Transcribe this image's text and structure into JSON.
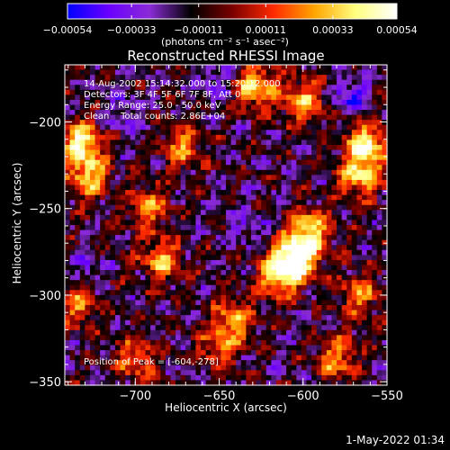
{
  "chart_data": {
    "type": "heatmap",
    "title": "Reconstructed RHESSI Image",
    "xlabel": "Heliocentric X (arcsec)",
    "ylabel": "Heliocentric Y (arcsec)",
    "xlim": [
      -742,
      -550
    ],
    "ylim": [
      -352,
      -167
    ],
    "xticks": [
      -700,
      -650,
      -600,
      -550
    ],
    "xtick_labels": [
      "−700",
      "−650",
      "−600",
      "−550"
    ],
    "yticks": [
      -200,
      -250,
      -300,
      -350
    ],
    "ytick_labels": [
      "−200",
      "−250",
      "−300",
      "−350"
    ],
    "colorbar": {
      "min": -0.00054,
      "max": 0.00054,
      "ticks": [
        -0.00054,
        -0.00033,
        -0.00011,
        0.00011,
        0.00033,
        0.00054
      ],
      "tick_labels": [
        "−0.00054",
        "−0.00033",
        "−0.00011",
        "0.00011",
        "0.00033",
        "0.00054"
      ],
      "unit_label": "(photons cm⁻² s⁻¹ asec⁻²)",
      "colors": [
        "#0000ff",
        "#6a00ff",
        "#8a2bd6",
        "#000000",
        "#7a0000",
        "#ff2a00",
        "#ffa500",
        "#ffff80",
        "#ffffff"
      ]
    },
    "annotations": [
      "14-Aug-2002 15:14:32.000 to 15:20:12.000",
      "Detectors: 3F 4F 5F 6F 7F 8F, Att 0",
      "Energy Range: 25.0 - 50.0 keV",
      "Clean    Total counts: 2.86E+04"
    ],
    "peak_label": "Position of Peak = [-604,-278]",
    "peak": {
      "x": -604,
      "y": -278
    },
    "hot_spots": [
      {
        "x": -604,
        "y": -278,
        "intensity": 1.0
      },
      {
        "x": -614,
        "y": -288,
        "intensity": 0.8
      },
      {
        "x": -596,
        "y": -262,
        "intensity": 0.7
      },
      {
        "x": -733,
        "y": -212,
        "intensity": 0.85
      },
      {
        "x": -728,
        "y": -232,
        "intensity": 0.7
      },
      {
        "x": -562,
        "y": -213,
        "intensity": 0.85
      },
      {
        "x": -566,
        "y": -232,
        "intensity": 0.7
      },
      {
        "x": -628,
        "y": -180,
        "intensity": 0.75
      },
      {
        "x": -600,
        "y": -188,
        "intensity": 0.65
      },
      {
        "x": -672,
        "y": -215,
        "intensity": 0.55
      },
      {
        "x": -684,
        "y": -280,
        "intensity": 0.6
      },
      {
        "x": -692,
        "y": -250,
        "intensity": 0.55
      },
      {
        "x": -640,
        "y": -313,
        "intensity": 0.55
      },
      {
        "x": -580,
        "y": -336,
        "intensity": 0.6
      },
      {
        "x": -700,
        "y": -337,
        "intensity": 0.5
      },
      {
        "x": -735,
        "y": -305,
        "intensity": 0.55
      },
      {
        "x": -650,
        "y": -330,
        "intensity": 0.5
      },
      {
        "x": -567,
        "y": -300,
        "intensity": 0.55
      }
    ],
    "cold_spots": [
      {
        "x": -572,
        "y": -185,
        "intensity": 0.9
      },
      {
        "x": -652,
        "y": -176,
        "intensity": 0.65
      },
      {
        "x": -708,
        "y": -195,
        "intensity": 0.5
      },
      {
        "x": -632,
        "y": -262,
        "intensity": 0.55
      },
      {
        "x": -728,
        "y": -286,
        "intensity": 0.6
      }
    ]
  },
  "footer": {
    "timestamp": "1-May-2022 01:34"
  }
}
